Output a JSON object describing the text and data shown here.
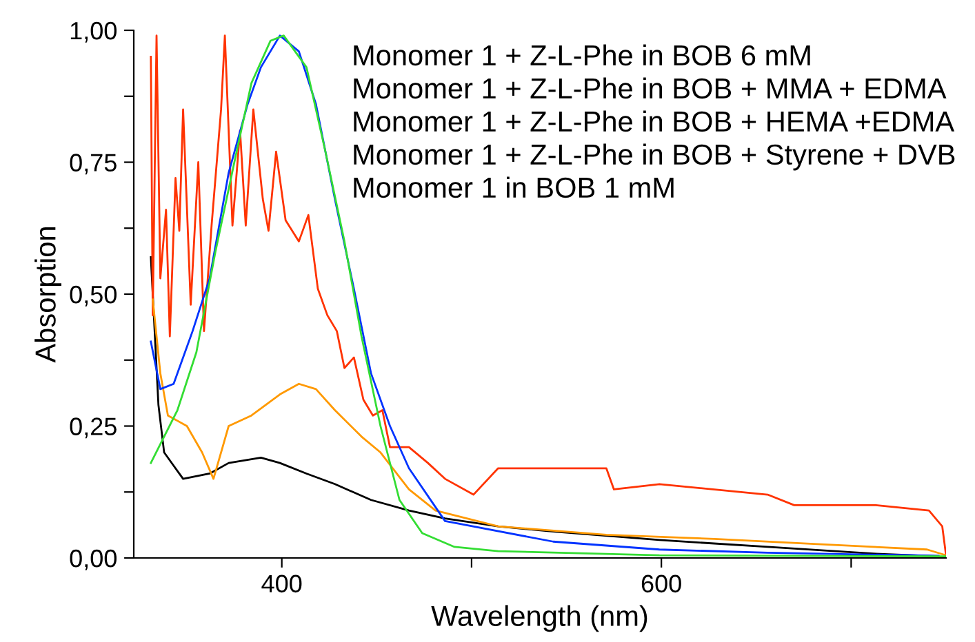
{
  "chart_data": {
    "type": "line",
    "xlabel": "Wavelength (nm)",
    "ylabel": "Absorption",
    "xlim": [
      322,
      750
    ],
    "ylim": [
      0,
      1.0
    ],
    "xticks": [
      400,
      600,
      {
        "value": 500,
        "label": null
      },
      {
        "value": 700,
        "label": null
      }
    ],
    "yticks": [
      {
        "value": 0,
        "label": "0,00"
      },
      {
        "value": 0.25,
        "label": "0,25"
      },
      {
        "value": 0.5,
        "label": "0,50"
      },
      {
        "value": 0.75,
        "label": "0,75"
      },
      {
        "value": 1.0,
        "label": "1,00"
      },
      {
        "value": 0.125,
        "label": null
      },
      {
        "value": 0.375,
        "label": null
      },
      {
        "value": 0.625,
        "label": null
      },
      {
        "value": 0.875,
        "label": null
      }
    ],
    "grid": false,
    "legend": false,
    "annotations": [
      "Monomer 1 + Z-L-Phe in BOB 6 mM",
      "Monomer 1 + Z-L-Phe in BOB + MMA + EDMA",
      "Monomer 1 + Z-L-Phe in BOB + HEMA +EDMA",
      "Monomer 1 + Z-L-Phe in BOB + Styrene + DVB",
      "Monomer 1 in BOB 1 mM"
    ],
    "series": [
      {
        "color": "#000000",
        "x": [
          331,
          335,
          338,
          348,
          362,
          372,
          389,
          399,
          413,
          428,
          447,
          467,
          486,
          514,
          543,
          599,
          656,
          713,
          746
        ],
        "values": [
          0.57,
          0.29,
          0.2,
          0.15,
          0.16,
          0.18,
          0.19,
          0.18,
          0.16,
          0.14,
          0.11,
          0.09,
          0.075,
          0.06,
          0.05,
          0.034,
          0.021,
          0.008,
          0.003
        ]
      },
      {
        "color": "#ff3300",
        "x": [
          331,
          332,
          334,
          336,
          339,
          341,
          344,
          346,
          348,
          352,
          356,
          359,
          363,
          368,
          370,
          374,
          378,
          381,
          385,
          390,
          393,
          397,
          402,
          409,
          414,
          419,
          424,
          429,
          433,
          438,
          443,
          448,
          453,
          457,
          467,
          477,
          486,
          501,
          514,
          571,
          575,
          599,
          656,
          670,
          713,
          741,
          748,
          750
        ],
        "values": [
          0.95,
          0.46,
          0.99,
          0.53,
          0.66,
          0.42,
          0.72,
          0.62,
          0.85,
          0.48,
          0.75,
          0.43,
          0.63,
          0.85,
          0.99,
          0.63,
          0.81,
          0.63,
          0.85,
          0.68,
          0.62,
          0.77,
          0.64,
          0.6,
          0.65,
          0.51,
          0.46,
          0.43,
          0.36,
          0.38,
          0.3,
          0.27,
          0.28,
          0.21,
          0.21,
          0.18,
          0.15,
          0.12,
          0.17,
          0.17,
          0.13,
          0.14,
          0.12,
          0.1,
          0.1,
          0.09,
          0.06,
          0.005
        ]
      },
      {
        "color": "#ff9900",
        "x": [
          332,
          336,
          340,
          350,
          358,
          364,
          372,
          384,
          399,
          409,
          418,
          428,
          442,
          452,
          467,
          481,
          514,
          571,
          628,
          684,
          740,
          750
        ],
        "values": [
          0.49,
          0.35,
          0.27,
          0.25,
          0.2,
          0.15,
          0.25,
          0.27,
          0.31,
          0.33,
          0.32,
          0.28,
          0.23,
          0.2,
          0.13,
          0.09,
          0.06,
          0.044,
          0.036,
          0.026,
          0.016,
          0.005
        ]
      },
      {
        "color": "#0033ff",
        "x": [
          331,
          336,
          343,
          353,
          362,
          372,
          382,
          389,
          399,
          409,
          418,
          428,
          438,
          447,
          457,
          467,
          486,
          543,
          599,
          656,
          746
        ],
        "values": [
          0.41,
          0.32,
          0.33,
          0.43,
          0.53,
          0.73,
          0.86,
          0.93,
          0.99,
          0.96,
          0.86,
          0.68,
          0.51,
          0.35,
          0.25,
          0.17,
          0.07,
          0.031,
          0.016,
          0.01,
          0.004
        ]
      },
      {
        "color": "#33dd33",
        "x": [
          331,
          345,
          355,
          365,
          375,
          384,
          394,
          401,
          413,
          423,
          433,
          442,
          452,
          462,
          474,
          491,
          514,
          599,
          750
        ],
        "values": [
          0.18,
          0.28,
          0.39,
          0.58,
          0.75,
          0.9,
          0.98,
          0.99,
          0.93,
          0.77,
          0.6,
          0.42,
          0.25,
          0.11,
          0.047,
          0.021,
          0.013,
          0.005,
          0.003
        ]
      }
    ]
  }
}
